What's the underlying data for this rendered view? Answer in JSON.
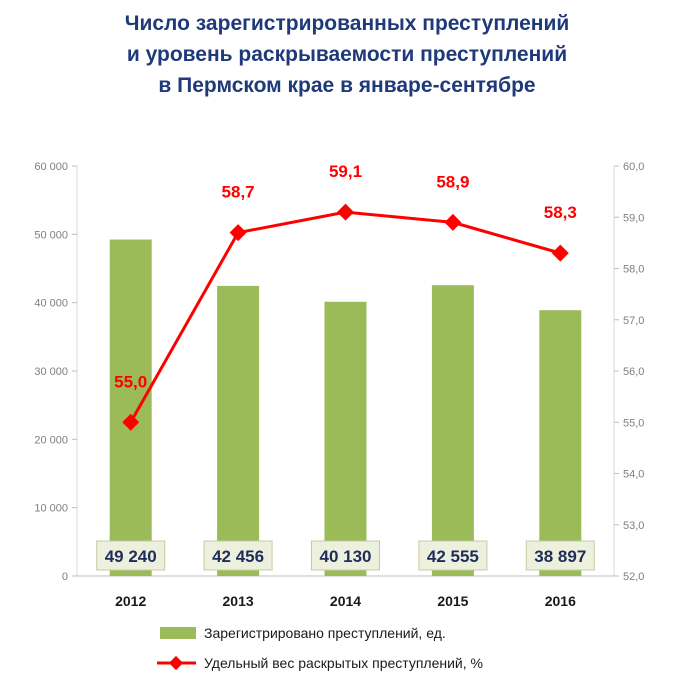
{
  "title_lines": [
    "Число зарегистрированных преступлений",
    "и уровень раскрываемости преступлений",
    "в Пермском крае в январе-сентябре"
  ],
  "chart_data": {
    "type": "bar",
    "categories": [
      "2012",
      "2013",
      "2014",
      "2015",
      "2016"
    ],
    "series": [
      {
        "name": "Зарегистрировано преступлений, ед.",
        "type": "bar",
        "axis": "left",
        "values": [
          49240,
          42456,
          40130,
          42555,
          38897
        ],
        "labels": [
          "49 240",
          "42 456",
          "40 130",
          "42 555",
          "38 897"
        ],
        "color": "#9bbb59"
      },
      {
        "name": "Удельный вес раскрытых преступлений, %",
        "type": "line",
        "axis": "right",
        "values": [
          55.0,
          58.7,
          59.1,
          58.9,
          58.3
        ],
        "labels": [
          "55,0",
          "58,7",
          "59,1",
          "58,9",
          "58,3"
        ],
        "color": "#ff0000"
      }
    ],
    "y_left": {
      "min": 0,
      "max": 60000,
      "ticks": [
        0,
        10000,
        20000,
        30000,
        40000,
        50000,
        60000
      ],
      "tick_labels": [
        "0",
        "10 000",
        "20 000",
        "30 000",
        "40 000",
        "50 000",
        "60 000"
      ]
    },
    "y_right": {
      "min": 52,
      "max": 60,
      "ticks": [
        52,
        53,
        54,
        55,
        56,
        57,
        58,
        59,
        60
      ],
      "tick_labels": [
        "52,0",
        "53,0",
        "54,0",
        "55,0",
        "56,0",
        "57,0",
        "58,0",
        "59,0",
        "60,0"
      ]
    },
    "grid": false,
    "legend_position": "bottom"
  }
}
